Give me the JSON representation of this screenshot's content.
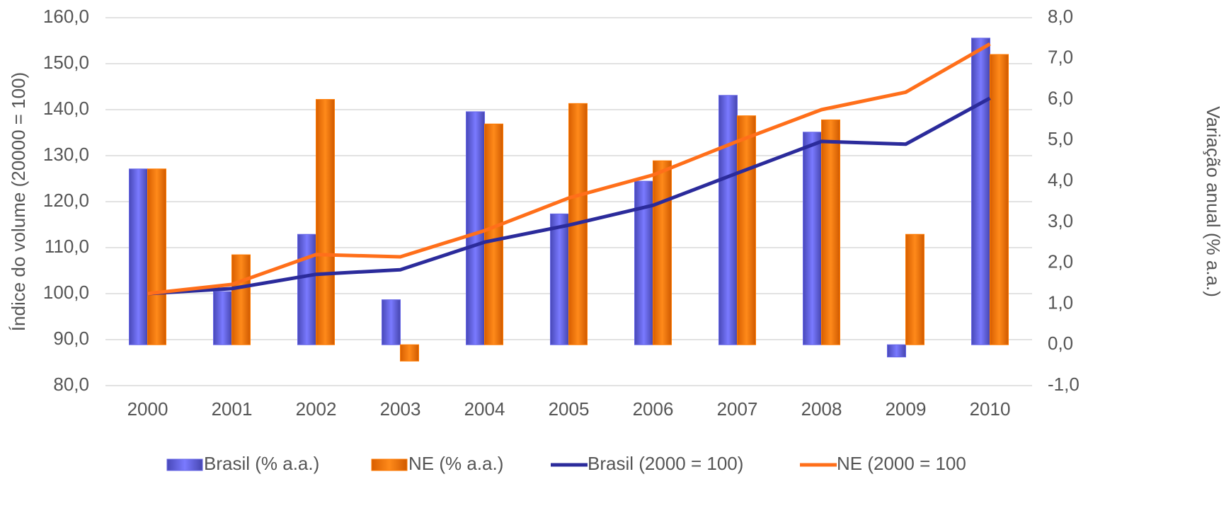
{
  "chart_data": {
    "type": "bar",
    "y_label": "Índice do volume (20000 = 100)",
    "y2_label": "Variação anual (% a.a.)",
    "categories": [
      "2000",
      "2001",
      "2002",
      "2003",
      "2004",
      "2005",
      "2006",
      "2007",
      "2008",
      "2009",
      "2010"
    ],
    "series": [
      {
        "name": "Brasil (% a.a.)",
        "type": "bar",
        "axis": "y2",
        "color": "#6666e6",
        "values": [
          4.3,
          1.3,
          2.7,
          1.1,
          5.7,
          3.2,
          4.0,
          6.1,
          5.2,
          -0.3,
          7.5
        ]
      },
      {
        "name": "NE (% a.a.)",
        "type": "bar",
        "axis": "y2",
        "color": "#ff7a00",
        "values": [
          4.3,
          2.2,
          6.0,
          -0.4,
          5.4,
          5.9,
          4.5,
          5.6,
          5.5,
          2.7,
          7.1
        ]
      },
      {
        "name": "Brasil (2000 = 100)",
        "type": "line",
        "axis": "y",
        "color": "#2b2b9b",
        "values": [
          100,
          101.1,
          104.2,
          105.2,
          111.2,
          114.9,
          119.2,
          126.2,
          133.1,
          132.5,
          142.5
        ]
      },
      {
        "name": "NE (2000 = 100",
        "type": "line",
        "axis": "y",
        "color": "#ff6f1a",
        "values": [
          100,
          102,
          108.5,
          108,
          113.7,
          120.8,
          125.8,
          133.1,
          140,
          143.8,
          154.3
        ]
      }
    ],
    "ylim": [
      80,
      160
    ],
    "yticks": [
      {
        "value": 80,
        "label": "80,0"
      },
      {
        "value": 90,
        "label": "90,0"
      },
      {
        "value": 100,
        "label": "100,0"
      },
      {
        "value": 110,
        "label": "110,0"
      },
      {
        "value": 120,
        "label": "120,0"
      },
      {
        "value": 130,
        "label": "130,0"
      },
      {
        "value": 140,
        "label": "140,0"
      },
      {
        "value": 150,
        "label": "150,0"
      },
      {
        "value": 160,
        "label": "160,0"
      }
    ],
    "y2lim": [
      -1,
      8
    ],
    "y2ticks": [
      {
        "value": -1,
        "label": "-1,0"
      },
      {
        "value": 0,
        "label": "0,0"
      },
      {
        "value": 1,
        "label": "1,0"
      },
      {
        "value": 2,
        "label": "2,0"
      },
      {
        "value": 3,
        "label": "3,0"
      },
      {
        "value": 4,
        "label": "4,0"
      },
      {
        "value": 5,
        "label": "5,0"
      },
      {
        "value": 6,
        "label": "6,0"
      },
      {
        "value": 7,
        "label": "7,0"
      },
      {
        "value": 8,
        "label": "8,0"
      }
    ],
    "grid": true
  }
}
